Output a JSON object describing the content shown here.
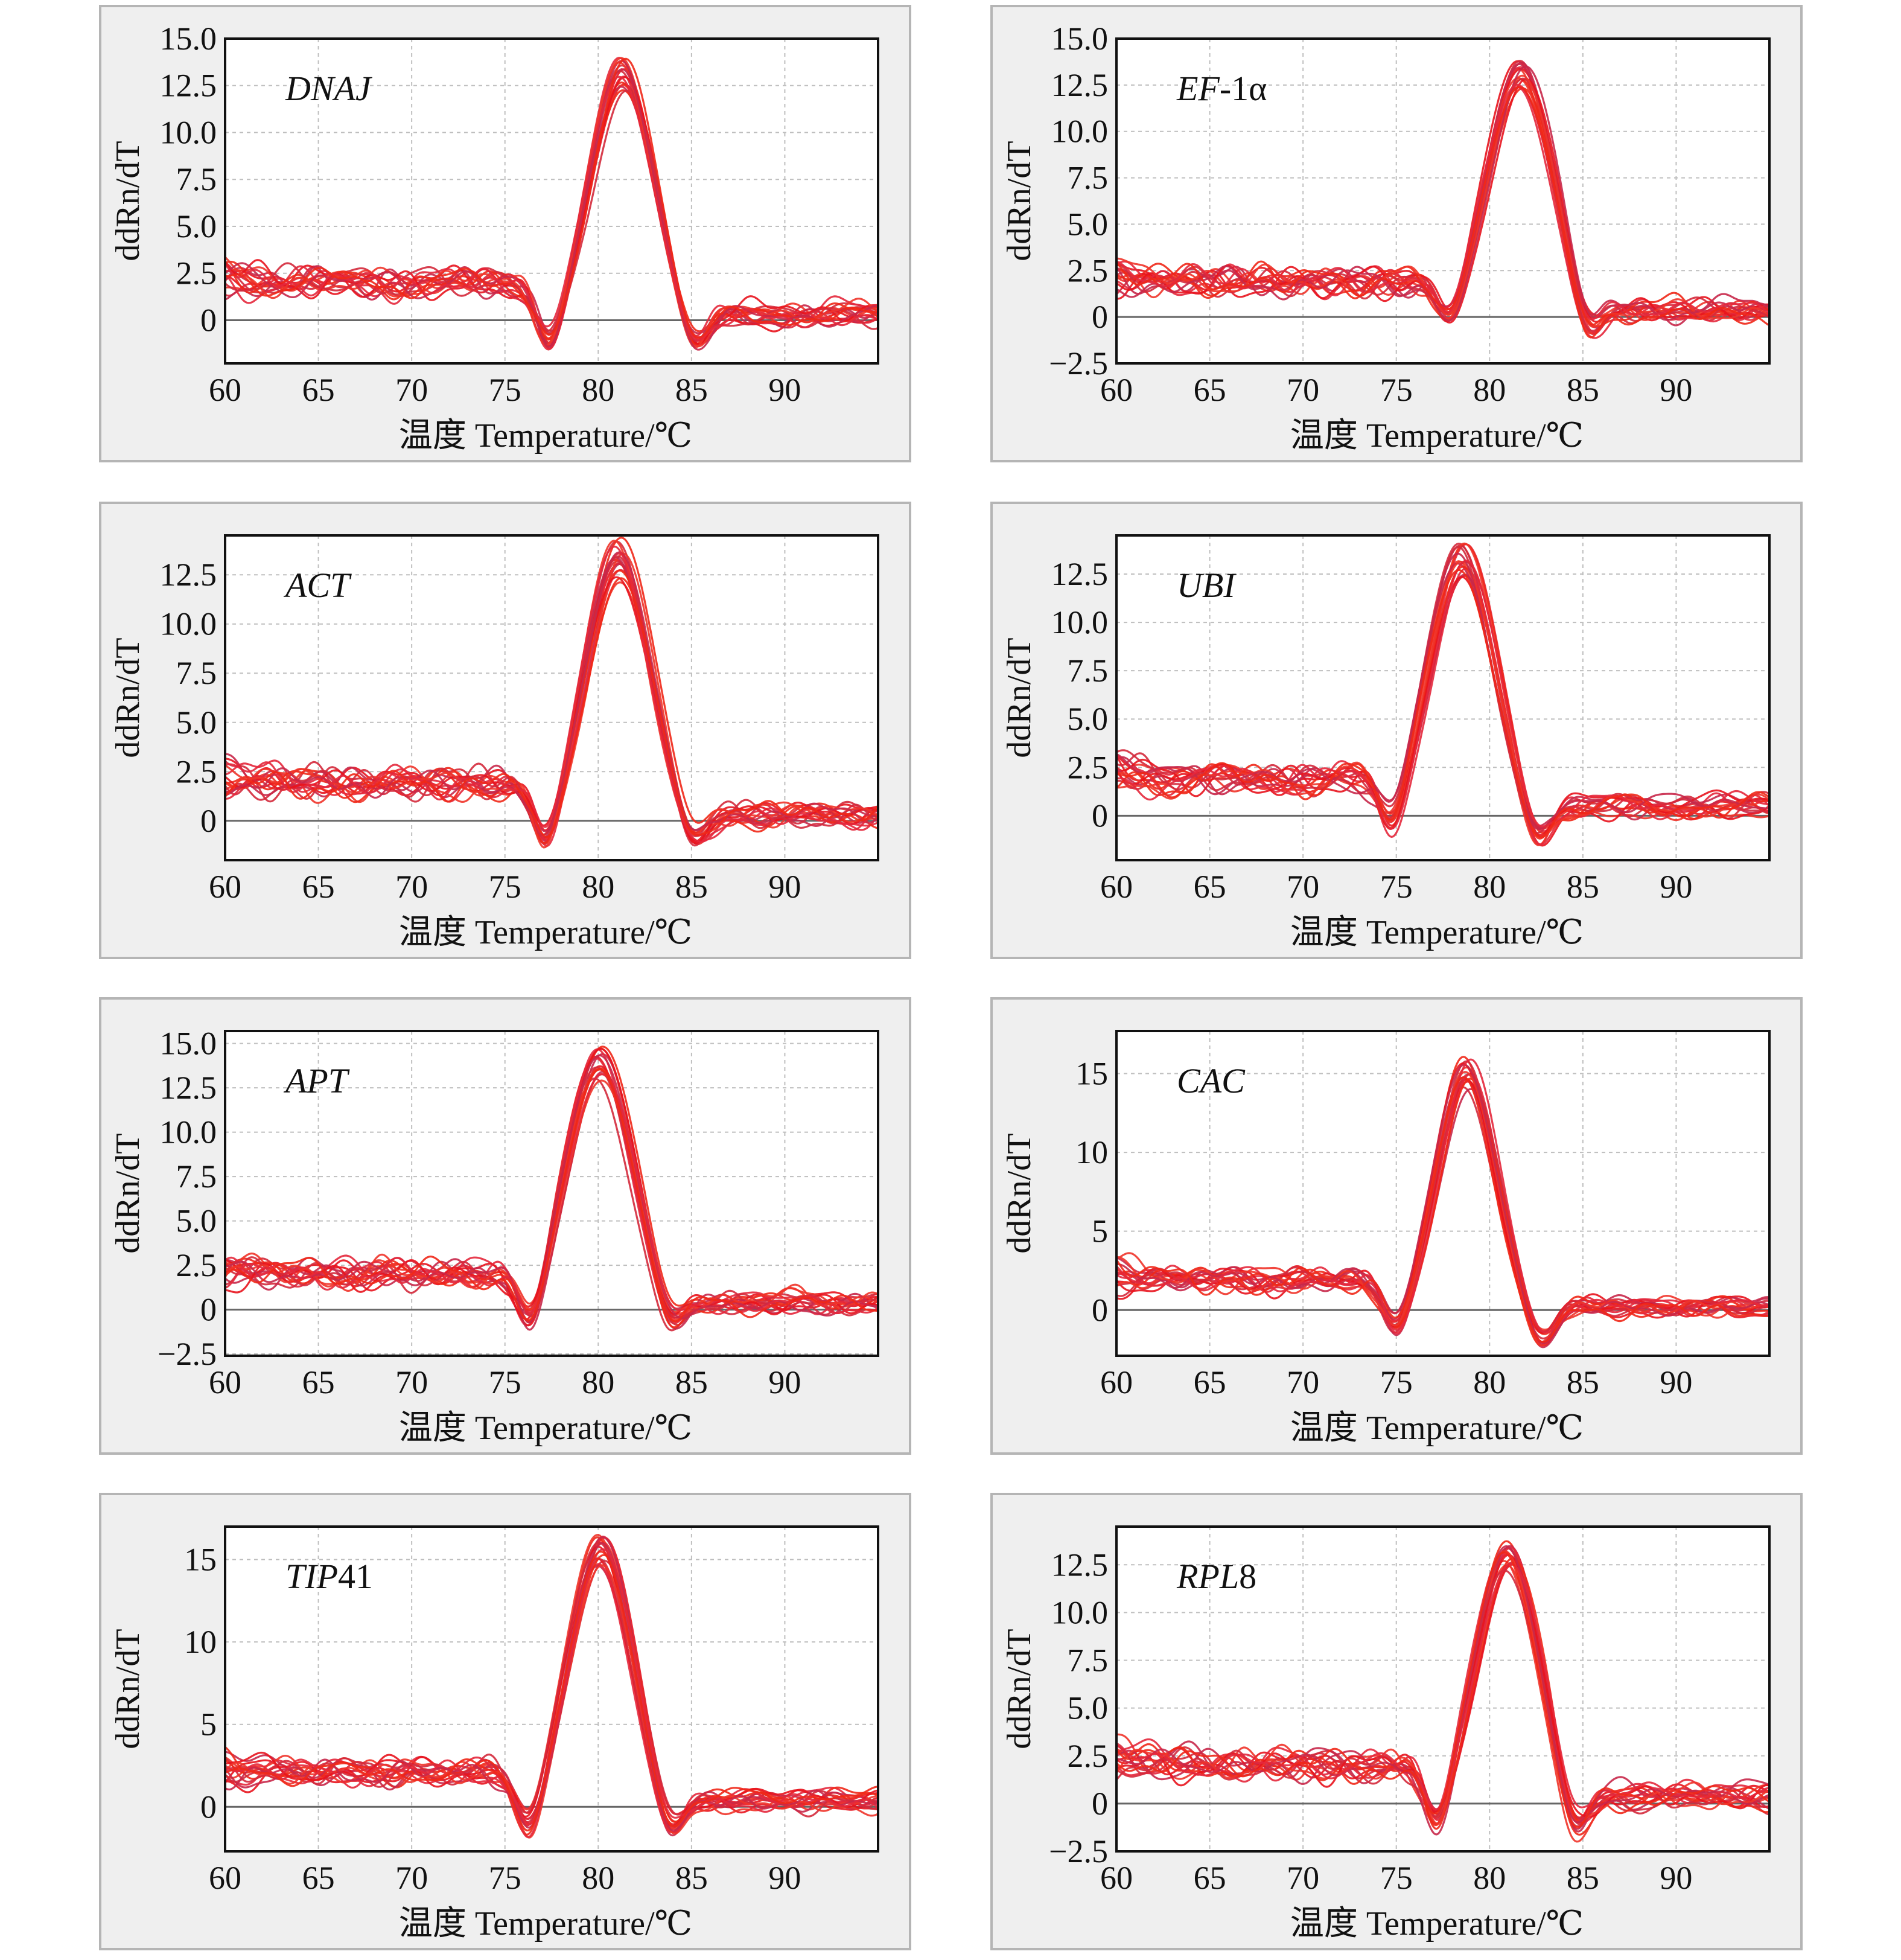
{
  "axis_labels": {
    "xlabel": "温度 Temperature/℃",
    "ylabel": "ddRn/dT"
  },
  "colors": {
    "curve_palette": [
      "#e8141e",
      "#d42a3c",
      "#f0342a",
      "#c8284a",
      "#e4283c",
      "#f02818"
    ],
    "grid": "#bfbfbf",
    "baseline": "#666666",
    "panel_background": "#efefef",
    "plot_background": "#ffffff"
  },
  "chart_data": [
    {
      "type": "line",
      "gene": "DNAJ",
      "gene_suffix": "",
      "x_ticks": [
        60,
        65,
        70,
        75,
        80,
        85,
        90
      ],
      "y_ticks": [
        0,
        2.5,
        5.0,
        7.5,
        10.0,
        12.5,
        15.0
      ],
      "y_tick_labels": [
        "0",
        "2.5",
        "5.0",
        "7.5",
        "10.0",
        "12.5",
        "15.0"
      ],
      "xlim": [
        60,
        95
      ],
      "ylim": [
        -2.3,
        15.0
      ],
      "grid": true,
      "series_count": 18,
      "curve_model": {
        "tm": 81.3,
        "peak": 13.1,
        "peak_spread": 0.9,
        "width": 1.65,
        "pre_dip": [
          77.4,
          -2.2
        ],
        "post_dip": [
          85.1,
          -1.9
        ],
        "baseline": 2.0,
        "tail": 0.3
      }
    },
    {
      "type": "line",
      "gene": "EF",
      "gene_suffix": "-1α",
      "x_ticks": [
        60,
        65,
        70,
        75,
        80,
        85,
        90
      ],
      "y_ticks": [
        -2.5,
        0,
        2.5,
        5.0,
        7.5,
        10.0,
        12.5,
        15.0
      ],
      "y_tick_labels": [
        "−2.5",
        "0",
        "2.5",
        "5.0",
        "7.5",
        "10.0",
        "12.5",
        "15.0"
      ],
      "xlim": [
        60,
        95
      ],
      "ylim": [
        -2.5,
        15.0
      ],
      "grid": true,
      "series_count": 18,
      "curve_model": {
        "tm": 81.7,
        "peak": 13.2,
        "peak_spread": 0.9,
        "width": 1.75,
        "pre_dip": [
          77.9,
          -1.5
        ],
        "post_dip": [
          85.2,
          -1.9
        ],
        "baseline": 1.9,
        "tail": 0.4
      }
    },
    {
      "type": "line",
      "gene": "ACT",
      "gene_suffix": "",
      "x_ticks": [
        60,
        65,
        70,
        75,
        80,
        85,
        90
      ],
      "y_ticks": [
        0,
        2.5,
        5.0,
        7.5,
        10.0,
        12.5
      ],
      "y_tick_labels": [
        "0",
        "2.5",
        "5.0",
        "7.5",
        "10.0",
        "12.5"
      ],
      "xlim": [
        60,
        95
      ],
      "ylim": [
        -2.0,
        14.5
      ],
      "grid": true,
      "series_count": 18,
      "curve_model": {
        "tm": 81.1,
        "peak": 13.2,
        "peak_spread": 1.2,
        "width": 1.7,
        "pre_dip": [
          77.2,
          -2.3
        ],
        "post_dip": [
          85.0,
          -1.7
        ],
        "baseline": 1.9,
        "tail": 0.3
      }
    },
    {
      "type": "line",
      "gene": "UBI",
      "gene_suffix": "",
      "x_ticks": [
        60,
        65,
        70,
        75,
        80,
        85,
        90
      ],
      "y_ticks": [
        0,
        2.5,
        5.0,
        7.5,
        10.0,
        12.5
      ],
      "y_tick_labels": [
        "0",
        "2.5",
        "5.0",
        "7.5",
        "10.0",
        "12.5"
      ],
      "xlim": [
        60,
        95
      ],
      "ylim": [
        -2.3,
        14.5
      ],
      "grid": true,
      "series_count": 18,
      "curve_model": {
        "tm": 78.5,
        "peak": 13.2,
        "peak_spread": 0.9,
        "width": 1.7,
        "pre_dip": [
          74.8,
          -1.8
        ],
        "post_dip": [
          82.5,
          -1.9
        ],
        "baseline": 1.9,
        "tail": 0.5
      }
    },
    {
      "type": "line",
      "gene": "APT",
      "gene_suffix": "",
      "x_ticks": [
        60,
        65,
        70,
        75,
        80,
        85,
        90
      ],
      "y_ticks": [
        -2.5,
        0,
        2.5,
        5.0,
        7.5,
        10.0,
        12.5,
        15.0
      ],
      "y_tick_labels": [
        "−2.5",
        "0",
        "2.5",
        "5.0",
        "7.5",
        "10.0",
        "12.5",
        "15.0"
      ],
      "xlim": [
        60,
        95
      ],
      "ylim": [
        -2.6,
        15.7
      ],
      "grid": true,
      "series_count": 18,
      "curve_model": {
        "tm": 80.0,
        "peak": 13.9,
        "peak_spread": 1.0,
        "width": 1.75,
        "pre_dip": [
          76.4,
          -2.4
        ],
        "post_dip": [
          83.8,
          -1.9
        ],
        "baseline": 2.0,
        "tail": 0.4
      }
    },
    {
      "type": "line",
      "gene": "CAC",
      "gene_suffix": "",
      "x_ticks": [
        60,
        65,
        70,
        75,
        80,
        85,
        90
      ],
      "y_ticks": [
        0,
        5,
        10,
        15
      ],
      "y_tick_labels": [
        "0",
        "5",
        "10",
        "15"
      ],
      "xlim": [
        60,
        95
      ],
      "ylim": [
        -2.9,
        17.7
      ],
      "grid": true,
      "series_count": 18,
      "curve_model": {
        "tm": 78.8,
        "peak": 15.0,
        "peak_spread": 1.2,
        "width": 1.55,
        "pre_dip": [
          75.0,
          -2.0
        ],
        "post_dip": [
          82.7,
          -2.3
        ],
        "baseline": 1.9,
        "tail": 0.2
      }
    },
    {
      "type": "line",
      "gene": "TIP",
      "gene_suffix": "41",
      "x_ticks": [
        60,
        65,
        70,
        75,
        80,
        85,
        90
      ],
      "y_ticks": [
        0,
        5,
        10,
        15
      ],
      "y_tick_labels": [
        "0",
        "5",
        "10",
        "15"
      ],
      "xlim": [
        60,
        95
      ],
      "ylim": [
        -2.7,
        17.0
      ],
      "grid": true,
      "series_count": 18,
      "curve_model": {
        "tm": 80.1,
        "peak": 15.5,
        "peak_spread": 1.0,
        "width": 1.65,
        "pre_dip": [
          76.3,
          -2.6
        ],
        "post_dip": [
          83.8,
          -2.5
        ],
        "baseline": 2.1,
        "tail": 0.4
      }
    },
    {
      "type": "line",
      "gene": "RPL",
      "gene_suffix": "8",
      "x_ticks": [
        60,
        65,
        70,
        75,
        80,
        85,
        90
      ],
      "y_ticks": [
        -2.5,
        0,
        2.5,
        5.0,
        7.5,
        10.0,
        12.5
      ],
      "y_tick_labels": [
        "−2.5",
        "0",
        "2.5",
        "5.0",
        "7.5",
        "10.0",
        "12.5"
      ],
      "xlim": [
        60,
        95
      ],
      "ylim": [
        -2.5,
        14.5
      ],
      "grid": true,
      "series_count": 18,
      "curve_model": {
        "tm": 81.0,
        "peak": 13.0,
        "peak_spread": 0.9,
        "width": 1.7,
        "pre_dip": [
          77.2,
          -2.3
        ],
        "post_dip": [
          84.5,
          -2.3
        ],
        "baseline": 2.0,
        "tail": 0.4
      }
    }
  ]
}
